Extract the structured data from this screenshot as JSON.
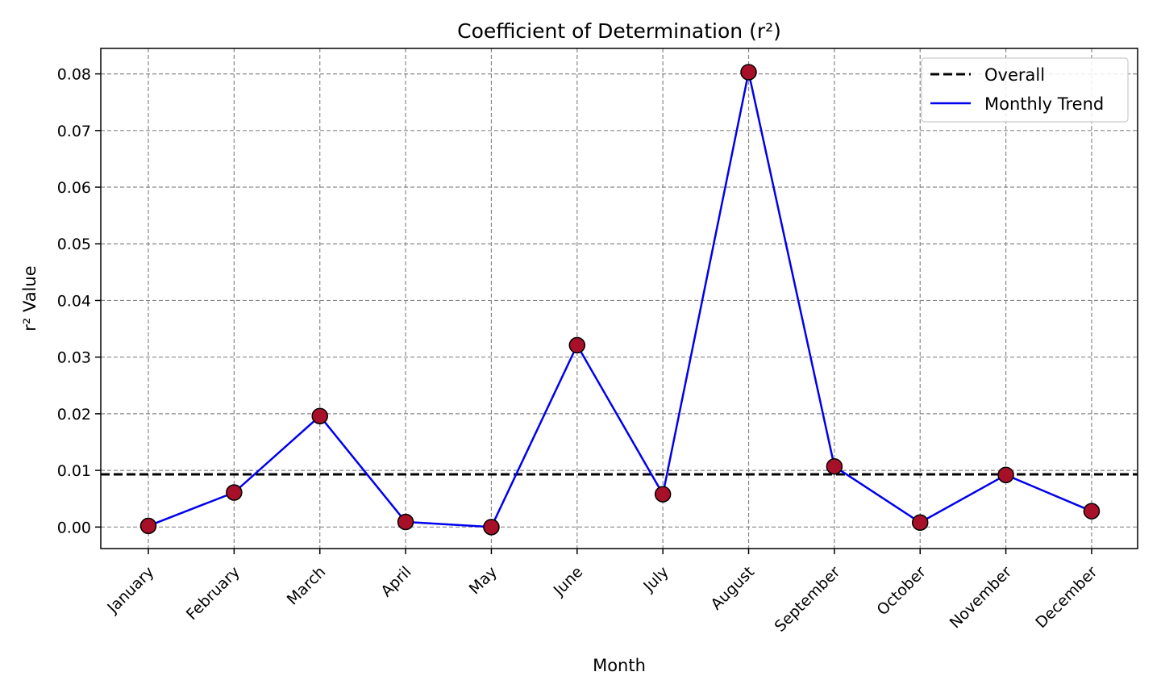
{
  "chart_data": {
    "type": "line",
    "title": "Coefficient of Determination (r²)",
    "xlabel": "Month",
    "ylabel": "r² Value",
    "categories": [
      "January",
      "February",
      "March",
      "April",
      "May",
      "June",
      "July",
      "August",
      "September",
      "October",
      "November",
      "December"
    ],
    "series": [
      {
        "name": "Monthly Trend",
        "color": "#0000ee",
        "marker_fill": "#a8102a",
        "values": [
          0.0002,
          0.0061,
          0.0196,
          0.0009,
          0.0,
          0.0321,
          0.0058,
          0.0803,
          0.0107,
          0.0008,
          0.0092,
          0.0028
        ]
      }
    ],
    "reference_line": {
      "name": "Overall",
      "value": 0.0093,
      "color": "#000000",
      "style": "dashed"
    },
    "ylim": [
      -0.0038,
      0.0845
    ],
    "yticks": [
      0.0,
      0.01,
      0.02,
      0.03,
      0.04,
      0.05,
      0.06,
      0.07,
      0.08
    ],
    "ytick_labels": [
      "0.00",
      "0.01",
      "0.02",
      "0.03",
      "0.04",
      "0.05",
      "0.06",
      "0.07",
      "0.08"
    ],
    "grid": true,
    "legend_position": "top-right",
    "legend": [
      "Overall",
      "Monthly Trend"
    ]
  }
}
